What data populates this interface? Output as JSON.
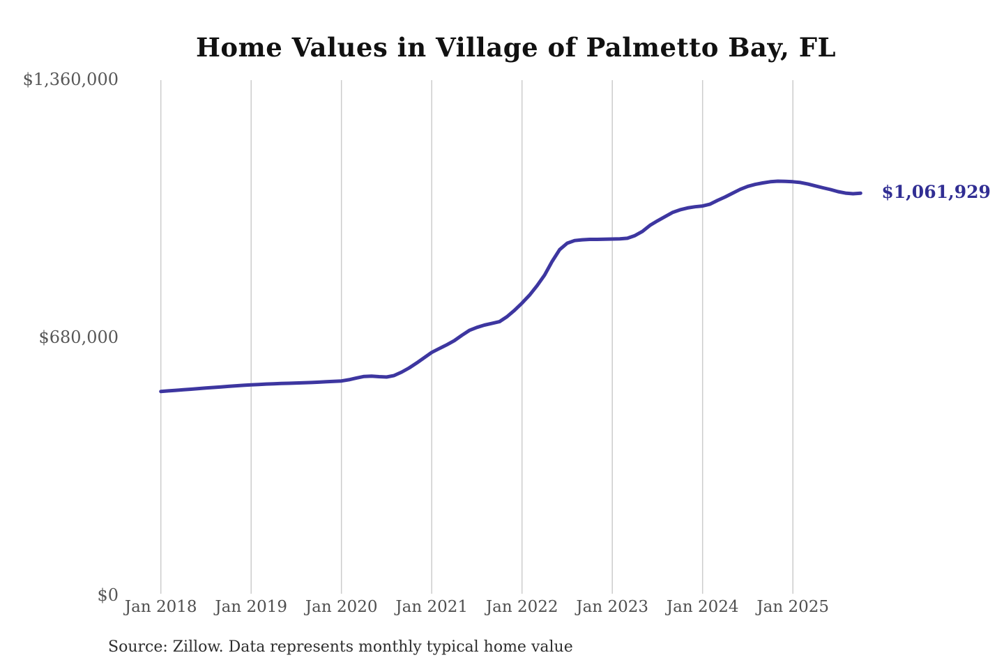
{
  "chart_data": {
    "type": "line",
    "title": "Home Values in Village of Palmetto Bay, FL",
    "source_note": "Source: Zillow. Data represents monthly typical home value",
    "end_label": "$1,061,929",
    "last_value": 1061929,
    "colors": {
      "line": "#3d36a0",
      "end_label": "#312e93",
      "grid": "#cccccc",
      "axis_text": "#575757",
      "title_text": "#111111"
    },
    "ylim": [
      0,
      1360000
    ],
    "grid": "vertical-only",
    "legend": "none",
    "y_ticks": [
      {
        "label": "$0",
        "value": 0
      },
      {
        "label": "$680,000",
        "value": 680000
      },
      {
        "label": "$1,360,000",
        "value": 1360000
      }
    ],
    "x_ticks": [
      {
        "label": "Jan 2018",
        "month_index": 0
      },
      {
        "label": "Jan 2019",
        "month_index": 12
      },
      {
        "label": "Jan 2020",
        "month_index": 24
      },
      {
        "label": "Jan 2021",
        "month_index": 36
      },
      {
        "label": "Jan 2022",
        "month_index": 48
      },
      {
        "label": "Jan 2023",
        "month_index": 60
      },
      {
        "label": "Jan 2024",
        "month_index": 72
      },
      {
        "label": "Jan 2025",
        "month_index": 84
      }
    ],
    "series": [
      {
        "name": "Monthly typical home value",
        "start": "2018-01",
        "frequency": "monthly",
        "values": [
          539000,
          540500,
          542000,
          543500,
          545000,
          546500,
          548000,
          549500,
          551000,
          552500,
          554000,
          555200,
          556400,
          557500,
          558500,
          559300,
          560000,
          560600,
          561200,
          561800,
          562500,
          563500,
          564500,
          565500,
          566600,
          570000,
          574500,
          578500,
          579500,
          578000,
          577000,
          581000,
          590000,
          601000,
          614000,
          628000,
          642000,
          652000,
          662000,
          673000,
          687000,
          700000,
          708000,
          714000,
          718500,
          723000,
          736000,
          753000,
          772000,
          793000,
          818000,
          846000,
          882000,
          913000,
          930000,
          937000,
          939000,
          940000,
          940000,
          940500,
          941000,
          941500,
          943000,
          950000,
          961000,
          977000,
          989000,
          1000000,
          1011000,
          1018000,
          1023000,
          1026000,
          1028000,
          1033000,
          1043000,
          1052000,
          1062000,
          1072000,
          1080000,
          1085000,
          1089000,
          1092000,
          1093500,
          1093000,
          1092000,
          1090000,
          1086000,
          1081000,
          1076000,
          1071500,
          1066000,
          1062000,
          1060500,
          1061929
        ]
      }
    ]
  }
}
